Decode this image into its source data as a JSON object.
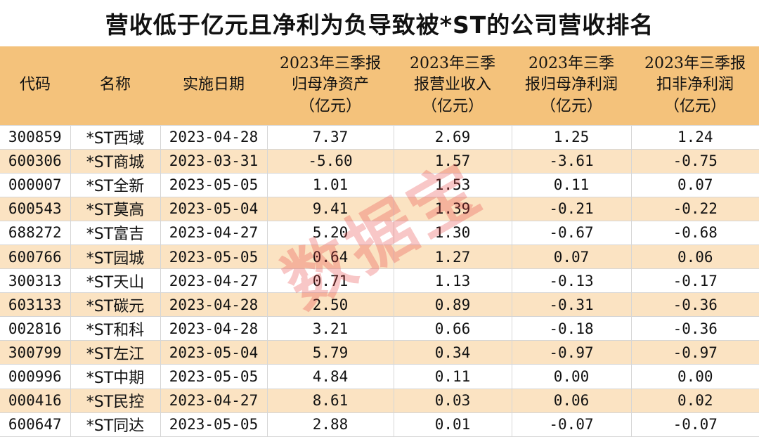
{
  "title": "营收低于亿元且净利为负导致被*ST的公司营收排名",
  "watermark": "数据宝",
  "table": {
    "headers": [
      {
        "lines": [
          "代码"
        ]
      },
      {
        "lines": [
          "名称"
        ]
      },
      {
        "lines": [
          "实施日期"
        ]
      },
      {
        "lines": [
          "2023年三季报",
          "归母净资产",
          "（亿元）"
        ]
      },
      {
        "lines": [
          "2023年三季",
          "报营业收入",
          "（亿元）"
        ]
      },
      {
        "lines": [
          "2023年三季",
          "报归母净利润",
          "（亿元）"
        ]
      },
      {
        "lines": [
          "2023年三季报",
          "扣非净利润",
          "（亿元）"
        ]
      }
    ],
    "rows": [
      [
        "300859",
        "*ST西域",
        "2023-04-28",
        "7.37",
        "2.69",
        "1.25",
        "1.24"
      ],
      [
        "600306",
        "*ST商城",
        "2023-03-31",
        "-5.60",
        "1.57",
        "-3.61",
        "-0.75"
      ],
      [
        "000007",
        "*ST全新",
        "2023-05-05",
        "1.01",
        "1.53",
        "0.11",
        "0.07"
      ],
      [
        "600543",
        "*ST莫高",
        "2023-05-04",
        "9.41",
        "1.39",
        "-0.21",
        "-0.22"
      ],
      [
        "688272",
        "*ST富吉",
        "2023-04-27",
        "5.20",
        "1.30",
        "-0.67",
        "-0.68"
      ],
      [
        "600766",
        "*ST园城",
        "2023-05-05",
        "0.64",
        "1.27",
        "0.07",
        "0.06"
      ],
      [
        "300313",
        "*ST天山",
        "2023-04-27",
        "0.71",
        "1.13",
        "-0.13",
        "-0.17"
      ],
      [
        "603133",
        "*ST碳元",
        "2023-04-28",
        "2.50",
        "0.89",
        "-0.31",
        "-0.36"
      ],
      [
        "002816",
        "*ST和科",
        "2023-04-28",
        "3.21",
        "0.66",
        "-0.18",
        "-0.36"
      ],
      [
        "300799",
        "*ST左江",
        "2023-05-04",
        "5.79",
        "0.34",
        "-0.97",
        "-0.97"
      ],
      [
        "000996",
        "*ST中期",
        "2023-05-05",
        "4.84",
        "0.11",
        "0.00",
        "0.00"
      ],
      [
        "000416",
        "*ST民控",
        "2023-04-27",
        "8.61",
        "0.03",
        "0.06",
        "0.02"
      ],
      [
        "600647",
        "*ST同达",
        "2023-05-05",
        "2.88",
        "0.01",
        "-0.07",
        "-0.07"
      ]
    ]
  }
}
